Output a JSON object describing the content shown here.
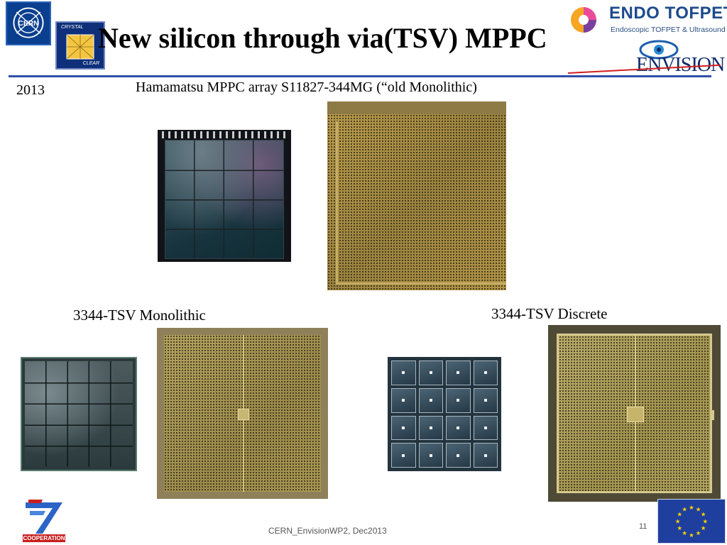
{
  "slide": {
    "title": "New silicon through via(TSV) MPPC",
    "year": "2013",
    "caption_top": "Hamamatsu MPPC array S11827-344MG (“old Monolithic)",
    "caption_monolithic": "3344-TSV Monolithic",
    "caption_discrete": "3344-TSV Discrete"
  },
  "logos": {
    "cern": "CERN",
    "crystal_clear_top": "CRYSTAL",
    "crystal_clear_bottom": "CLEAR",
    "endo_name": "ENDO TOFPET US",
    "endo_sub": "Endoscopic TOFPET & Ultrasound",
    "envision": "ENVISION",
    "fp7": "COOPERATION"
  },
  "footer": {
    "text": "CERN_EnvisionWP2, Dec2013",
    "page": "11"
  },
  "colors": {
    "rule_blue": "#2f4fa8",
    "rule_red": "#d11f1f",
    "eu_blue": "#1f3f9e",
    "eu_star": "#ffd400"
  }
}
